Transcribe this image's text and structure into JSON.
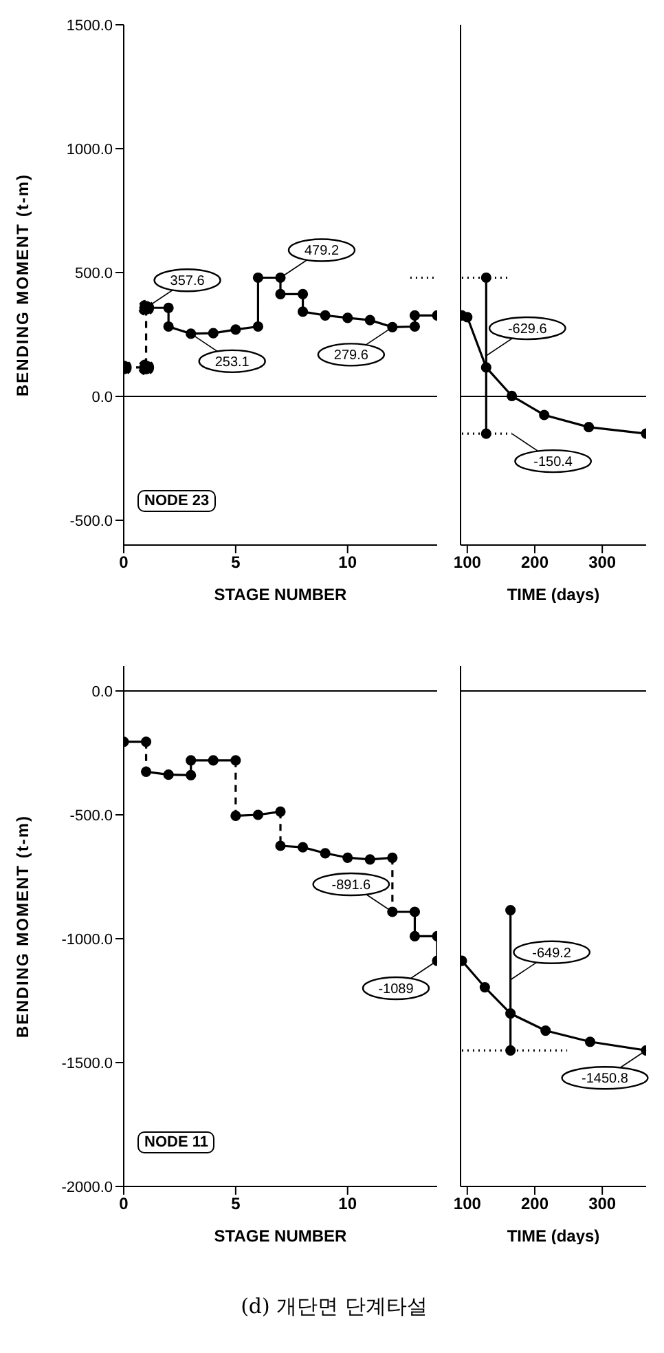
{
  "chart_data": [
    {
      "type": "line",
      "ylabel": "BENDING MOMENT (t-m)",
      "xlabel": "STAGE NUMBER",
      "xlim": [
        0,
        14
      ],
      "xticks": [
        0,
        5,
        10
      ],
      "ylim": [
        -600,
        1500
      ],
      "yticks": [
        {
          "value": -500,
          "label": "-500.0"
        },
        {
          "value": 0,
          "label": "0.0"
        },
        {
          "value": 500,
          "label": "500.0"
        },
        {
          "value": 1000,
          "label": "1000.0"
        },
        {
          "value": 1500,
          "label": "1500.0"
        }
      ],
      "marker": "circle",
      "ref_lines": [
        {
          "axis": "y",
          "value": 0
        }
      ],
      "series": [
        {
          "x": [
            1,
            2,
            2,
            3,
            4,
            5,
            6,
            6,
            7,
            7,
            8,
            8,
            9,
            10,
            11,
            12,
            13,
            13,
            14
          ],
          "values": [
            357.6,
            357.6,
            282,
            253.1,
            255,
            270,
            282,
            479.2,
            479.2,
            413,
            413,
            342,
            327,
            317,
            308,
            279.6,
            282,
            327,
            327
          ],
          "color": "#000000",
          "line_style": "solid"
        },
        {
          "x": [
            0,
            1,
            1
          ],
          "values": [
            117,
            117,
            357.6
          ],
          "color": "#000000",
          "line_style": "dashed"
        },
        {
          "type": "line",
          "x": [
            12.8,
            14
          ],
          "values": [
            479.2,
            479.2
          ],
          "color": "#000000",
          "line_style": "dotted",
          "marker": "none"
        }
      ],
      "annotations": [
        {
          "text": "357.6",
          "x": 1,
          "y": 357.6
        },
        {
          "text": "253.1",
          "x": 3,
          "y": 253.1
        },
        {
          "text": "479.2",
          "x": 7,
          "y": 479.2
        },
        {
          "text": "279.6",
          "x": 12,
          "y": 279.6
        },
        "NODE 23"
      ]
    },
    {
      "type": "line",
      "xlabel": "TIME (days)",
      "xlim": [
        90,
        365
      ],
      "xticks": [
        100,
        200,
        300
      ],
      "ylim": [
        -600,
        1500
      ],
      "tick_labels": "x",
      "marker": "circle",
      "ref_lines": [
        {
          "axis": "y",
          "value": 0
        }
      ],
      "series": [
        {
          "x": [
            92,
            100,
            128,
            166,
            214,
            280,
            365
          ],
          "values": [
            327,
            320,
            117,
            2,
            -75,
            -124,
            -150.4
          ],
          "color": "#000000",
          "line_style": "solid"
        },
        {
          "x": [
            128,
            128
          ],
          "values": [
            479.2,
            -150.4
          ],
          "color": "#000000",
          "line_style": "solid"
        },
        {
          "x": [
            92,
            161
          ],
          "values": [
            479.2,
            479.2
          ],
          "color": "#000000",
          "line_style": "dotted",
          "marker": "none"
        },
        {
          "x": [
            92,
            166
          ],
          "values": [
            -150.4,
            -150.4
          ],
          "color": "#000000",
          "line_style": "dotted",
          "marker": "none"
        }
      ],
      "annotations": [
        {
          "text": "-629.6",
          "x": 128,
          "y": 164
        },
        {
          "text": "-150.4",
          "x": 166,
          "y": -150.4
        }
      ]
    },
    {
      "type": "line",
      "ylabel": "BENDING MOMENT (t-m)",
      "xlabel": "STAGE NUMBER",
      "xlim": [
        0,
        14
      ],
      "xticks": [
        0,
        5,
        10
      ],
      "ylim": [
        -2000,
        100
      ],
      "yticks": [
        {
          "value": -2000,
          "label": "-2000.0"
        },
        {
          "value": -1500,
          "label": "-1500.0"
        },
        {
          "value": -1000,
          "label": "-1000.0"
        },
        {
          "value": -500,
          "label": "-500.0"
        },
        {
          "value": 0,
          "label": "0.0"
        }
      ],
      "marker": "circle",
      "ref_lines": [
        {
          "axis": "y",
          "value": 0
        }
      ],
      "series": [
        {
          "x": [
            0,
            1
          ],
          "values": [
            -205,
            -205
          ],
          "color": "#000000",
          "line_style": "solid"
        },
        {
          "x": [
            1,
            2,
            3,
            3,
            4,
            5
          ],
          "values": [
            -326,
            -338,
            -340,
            -280,
            -280,
            -280
          ],
          "color": "#000000",
          "line_style": "solid"
        },
        {
          "x": [
            5,
            6,
            7
          ],
          "values": [
            -504,
            -500,
            -487
          ],
          "color": "#000000",
          "line_style": "solid"
        },
        {
          "x": [
            7,
            8,
            9,
            10,
            11,
            12
          ],
          "values": [
            -625,
            -631,
            -655,
            -673,
            -680,
            -673
          ],
          "color": "#000000",
          "line_style": "solid"
        },
        {
          "x": [
            12,
            13,
            13,
            14,
            14
          ],
          "values": [
            -891.6,
            -891.6,
            -990,
            -990,
            -1089
          ],
          "color": "#000000",
          "line_style": "solid"
        },
        {
          "x": [
            1,
            1
          ],
          "values": [
            -205,
            -326
          ],
          "color": "#000000",
          "line_style": "dashed",
          "marker": "none"
        },
        {
          "x": [
            5,
            5
          ],
          "values": [
            -280,
            -504
          ],
          "color": "#000000",
          "line_style": "dashed",
          "marker": "none"
        },
        {
          "x": [
            7,
            7
          ],
          "values": [
            -487,
            -625
          ],
          "color": "#000000",
          "line_style": "dashed",
          "marker": "none"
        },
        {
          "x": [
            12,
            12
          ],
          "values": [
            -673,
            -891.6
          ],
          "color": "#000000",
          "line_style": "dashed",
          "marker": "none"
        }
      ],
      "annotations": [
        {
          "text": "-891.6",
          "x": 12,
          "y": -891.6
        },
        {
          "text": "-1089",
          "x": 14,
          "y": -1089
        },
        "NODE 11",
        "(d) 개단면 단계타설"
      ]
    },
    {
      "type": "line",
      "xlabel": "TIME (days)",
      "xlim": [
        90,
        365
      ],
      "xticks": [
        100,
        200,
        300
      ],
      "ylim": [
        -2000,
        100
      ],
      "tick_labels": "x",
      "marker": "circle",
      "ref_lines": [
        {
          "axis": "y",
          "value": 0
        }
      ],
      "series": [
        {
          "x": [
            92,
            126,
            164,
            216,
            282,
            365
          ],
          "values": [
            -1089,
            -1196,
            -1302,
            -1371,
            -1416,
            -1450.8
          ],
          "color": "#000000",
          "line_style": "solid"
        },
        {
          "x": [
            164,
            164
          ],
          "values": [
            -885,
            -1450.8
          ],
          "color": "#000000",
          "line_style": "solid"
        },
        {
          "x": [
            92,
            248
          ],
          "values": [
            -1450.8,
            -1450.8
          ],
          "color": "#000000",
          "line_style": "dotted",
          "marker": "none"
        }
      ],
      "annotations": [
        {
          "text": "-649.2",
          "x": 164,
          "y": -1166
        },
        {
          "text": "-1450.8",
          "x": 365,
          "y": -1450.8
        }
      ]
    }
  ]
}
